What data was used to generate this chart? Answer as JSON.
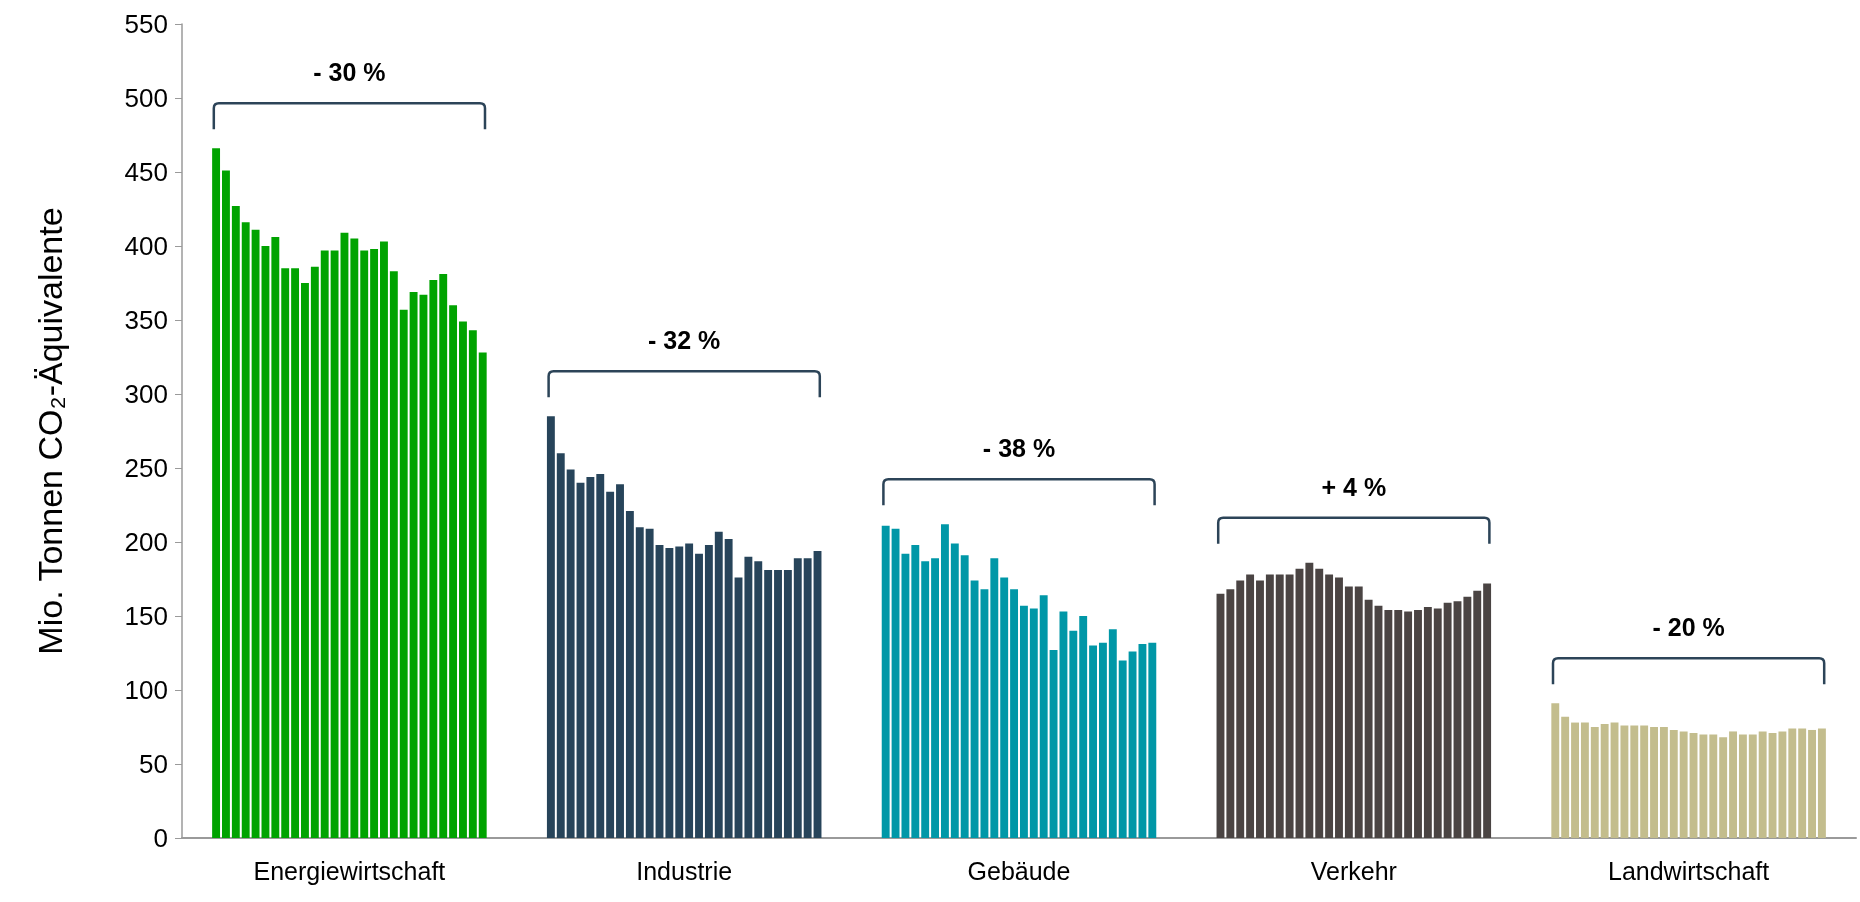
{
  "chart_data": {
    "type": "bar",
    "ylabel": "Mio. Tonnen CO₂-Äquivalente",
    "categories": [
      "Energiewirtschaft",
      "Industrie",
      "Gebäude",
      "Verkehr",
      "Landwirtschaft"
    ],
    "ylim": [
      0,
      550
    ],
    "yticks": [
      0,
      50,
      100,
      150,
      200,
      250,
      300,
      350,
      400,
      450,
      500,
      550
    ],
    "grid": false,
    "annotations": [
      "- 30 %",
      "- 32 %",
      "- 38 %",
      "+ 4 %",
      "- 20 %"
    ],
    "series": [
      {
        "colors": [
          "#00a300",
          "#27445a",
          "#0097a7",
          "#4a4443",
          "#c3bd8d"
        ],
        "values": [
          466,
          285,
          211,
          165,
          91
        ]
      },
      {
        "colors": [
          "#00a300",
          "#27445a",
          "#0097a7",
          "#4a4443",
          "#c3bd8d"
        ],
        "values": [
          451,
          260,
          209,
          168,
          82
        ]
      },
      {
        "colors": [
          "#00a300",
          "#27445a",
          "#0097a7",
          "#4a4443",
          "#c3bd8d"
        ],
        "values": [
          427,
          249,
          192,
          174,
          78
        ]
      },
      {
        "colors": [
          "#00a300",
          "#27445a",
          "#0097a7",
          "#4a4443",
          "#c3bd8d"
        ],
        "values": [
          416,
          240,
          198,
          178,
          78
        ]
      },
      {
        "colors": [
          "#00a300",
          "#27445a",
          "#0097a7",
          "#4a4443",
          "#c3bd8d"
        ],
        "values": [
          411,
          244,
          187,
          174,
          75
        ]
      },
      {
        "colors": [
          "#00a300",
          "#27445a",
          "#0097a7",
          "#4a4443",
          "#c3bd8d"
        ],
        "values": [
          400,
          246,
          189,
          178,
          77
        ]
      },
      {
        "colors": [
          "#00a300",
          "#27445a",
          "#0097a7",
          "#4a4443",
          "#c3bd8d"
        ],
        "values": [
          406,
          234,
          212,
          178,
          78
        ]
      },
      {
        "colors": [
          "#00a300",
          "#27445a",
          "#0097a7",
          "#4a4443",
          "#c3bd8d"
        ],
        "values": [
          385,
          239,
          199,
          178,
          76
        ]
      },
      {
        "colors": [
          "#00a300",
          "#27445a",
          "#0097a7",
          "#4a4443",
          "#c3bd8d"
        ],
        "values": [
          385,
          221,
          191,
          182,
          76
        ]
      },
      {
        "colors": [
          "#00a300",
          "#27445a",
          "#0097a7",
          "#4a4443",
          "#c3bd8d"
        ],
        "values": [
          375,
          210,
          174,
          186,
          76
        ]
      },
      {
        "colors": [
          "#00a300",
          "#27445a",
          "#0097a7",
          "#4a4443",
          "#c3bd8d"
        ],
        "values": [
          386,
          209,
          168,
          182,
          75
        ]
      },
      {
        "colors": [
          "#00a300",
          "#27445a",
          "#0097a7",
          "#4a4443",
          "#c3bd8d"
        ],
        "values": [
          397,
          198,
          189,
          178,
          75
        ]
      },
      {
        "colors": [
          "#00a300",
          "#27445a",
          "#0097a7",
          "#4a4443",
          "#c3bd8d"
        ],
        "values": [
          397,
          196,
          176,
          176,
          73
        ]
      },
      {
        "colors": [
          "#00a300",
          "#27445a",
          "#0097a7",
          "#4a4443",
          "#c3bd8d"
        ],
        "values": [
          409,
          197,
          168,
          170,
          72
        ]
      },
      {
        "colors": [
          "#00a300",
          "#27445a",
          "#0097a7",
          "#4a4443",
          "#c3bd8d"
        ],
        "values": [
          405,
          199,
          157,
          170,
          71
        ]
      },
      {
        "colors": [
          "#00a300",
          "#27445a",
          "#0097a7",
          "#4a4443",
          "#c3bd8d"
        ],
        "values": [
          397,
          192,
          155,
          161,
          70
        ]
      },
      {
        "colors": [
          "#00a300",
          "#27445a",
          "#0097a7",
          "#4a4443",
          "#c3bd8d"
        ],
        "values": [
          398,
          198,
          164,
          157,
          70
        ]
      },
      {
        "colors": [
          "#00a300",
          "#27445a",
          "#0097a7",
          "#4a4443",
          "#c3bd8d"
        ],
        "values": [
          403,
          207,
          127,
          154,
          68
        ]
      },
      {
        "colors": [
          "#00a300",
          "#27445a",
          "#0097a7",
          "#4a4443",
          "#c3bd8d"
        ],
        "values": [
          383,
          202,
          153,
          154,
          72
        ]
      },
      {
        "colors": [
          "#00a300",
          "#27445a",
          "#0097a7",
          "#4a4443",
          "#c3bd8d"
        ],
        "values": [
          357,
          176,
          140,
          153,
          70
        ]
      },
      {
        "colors": [
          "#00a300",
          "#27445a",
          "#0097a7",
          "#4a4443",
          "#c3bd8d"
        ],
        "values": [
          369,
          190,
          150,
          154,
          70
        ]
      },
      {
        "colors": [
          "#00a300",
          "#27445a",
          "#0097a7",
          "#4a4443",
          "#c3bd8d"
        ],
        "values": [
          367,
          187,
          130,
          156,
          72
        ]
      },
      {
        "colors": [
          "#00a300",
          "#27445a",
          "#0097a7",
          "#4a4443",
          "#c3bd8d"
        ],
        "values": [
          377,
          181,
          132,
          155,
          71
        ]
      },
      {
        "colors": [
          "#00a300",
          "#27445a",
          "#0097a7",
          "#4a4443",
          "#c3bd8d"
        ],
        "values": [
          381,
          181,
          141,
          159,
          72
        ]
      },
      {
        "colors": [
          "#00a300",
          "#27445a",
          "#0097a7",
          "#4a4443",
          "#c3bd8d"
        ],
        "values": [
          360,
          181,
          120,
          160,
          74
        ]
      },
      {
        "colors": [
          "#00a300",
          "#27445a",
          "#0097a7",
          "#4a4443",
          "#c3bd8d"
        ],
        "values": [
          349,
          189,
          126,
          163,
          74
        ]
      },
      {
        "colors": [
          "#00a300",
          "#27445a",
          "#0097a7",
          "#4a4443",
          "#c3bd8d"
        ],
        "values": [
          343,
          189,
          131,
          167,
          73
        ]
      },
      {
        "colors": [
          "#00a300",
          "#27445a",
          "#0097a7",
          "#4a4443",
          "#c3bd8d"
        ],
        "values": [
          328,
          194,
          132,
          172,
          74
        ]
      }
    ]
  }
}
